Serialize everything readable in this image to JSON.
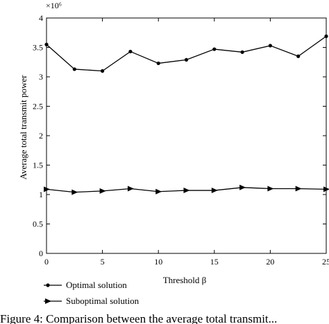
{
  "chart_data": {
    "type": "line",
    "x": [
      0,
      2.5,
      5,
      7.5,
      10,
      12.5,
      15,
      17.5,
      20,
      22.5,
      25
    ],
    "xlim": [
      0,
      25
    ],
    "ylim": [
      0,
      4
    ],
    "x_ticks": [
      "0",
      "5",
      "10",
      "15",
      "20",
      "25"
    ],
    "y_ticks": [
      "0",
      "0.5",
      "1",
      "1.5",
      "2",
      "2.5",
      "3",
      "3.5",
      "4"
    ],
    "y_multiplier": "×10⁶",
    "xlabel": "Threshold β",
    "ylabel": "Average total transmit power",
    "grid": false,
    "legend_position": "bottom-left, outside plot",
    "series": [
      {
        "name": "Optimal solution",
        "marker": "circle",
        "color": "#000000",
        "values": [
          3.55,
          3.13,
          3.1,
          3.43,
          3.23,
          3.29,
          3.47,
          3.42,
          3.53,
          3.35,
          3.69
        ]
      },
      {
        "name": "Suboptimal solution",
        "marker": "triangle-right",
        "color": "#000000",
        "values": [
          1.09,
          1.04,
          1.06,
          1.1,
          1.05,
          1.07,
          1.07,
          1.12,
          1.1,
          1.1,
          1.09
        ]
      }
    ]
  },
  "caption": "Figure 4: Comparison between the average total transmit..."
}
